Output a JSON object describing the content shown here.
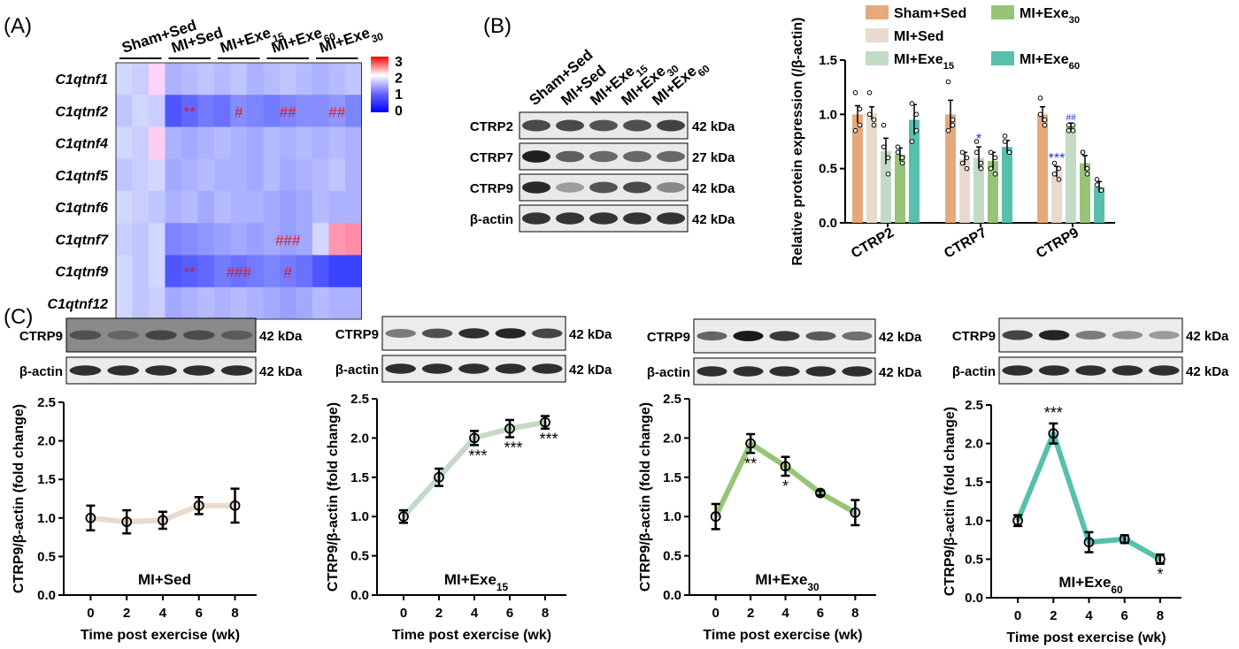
{
  "panels": {
    "A": "(A)",
    "B": "(B)",
    "C": "(C)"
  },
  "colors": {
    "sham_sed": "#e6a97a",
    "mi_sed": "#e8dacd",
    "mi_exe15": "#c3dac6",
    "mi_exe30": "#97c477",
    "mi_exe60": "#56c0ad",
    "sig_red": "#e8141b",
    "sig_blue": "#1a35d6"
  },
  "heatmap": {
    "group_labels": [
      {
        "base": "Sham+Sed",
        "sub": ""
      },
      {
        "base": "MI+Sed",
        "sub": ""
      },
      {
        "base": "MI+Exe",
        "sub": "15"
      },
      {
        "base": "MI+Exe",
        "sub": "60"
      },
      {
        "base": "MI+Exe",
        "sub": "30"
      }
    ],
    "row_labels": [
      "C1qtnf1",
      "C1qtnf2",
      "C1qtnf4",
      "C1qtnf5",
      "C1qtnf6",
      "C1qtnf7",
      "C1qtnf9",
      "C1qtnf12"
    ],
    "colorbar_ticks": [
      "3",
      "2",
      "1",
      "0"
    ],
    "annotations": [
      {
        "row": 1,
        "col": 4,
        "text": "**"
      },
      {
        "row": 1,
        "col": 7,
        "text": "#"
      },
      {
        "row": 1,
        "col": 10,
        "text": "##"
      },
      {
        "row": 1,
        "col": 13,
        "text": "##"
      },
      {
        "row": 5,
        "col": 10,
        "text": "###"
      },
      {
        "row": 6,
        "col": 4,
        "text": "**"
      },
      {
        "row": 6,
        "col": 7,
        "text": "###"
      },
      {
        "row": 6,
        "col": 10,
        "text": "#"
      }
    ]
  },
  "blot_b": {
    "lane_labels": [
      {
        "base": "Sham+Sed",
        "sub": ""
      },
      {
        "base": "MI+Sed",
        "sub": ""
      },
      {
        "base": "MI+Exe",
        "sub": "15"
      },
      {
        "base": "MI+Exe",
        "sub": "30"
      },
      {
        "base": "MI+Exe",
        "sub": "60"
      }
    ],
    "rows": [
      {
        "name": "CTRP2",
        "kda": "42 kDa"
      },
      {
        "name": "CTRP7",
        "kda": "27 kDa"
      },
      {
        "name": "CTRP9",
        "kda": "42 kDa"
      },
      {
        "name": "β-actin",
        "kda": "42 kDa"
      }
    ]
  },
  "legend_b": [
    {
      "base": "Sham+Sed",
      "sub": ""
    },
    {
      "base": "MI+Exe",
      "sub": "30"
    },
    {
      "base": "MI+Sed",
      "sub": ""
    },
    {
      "base": "MI+Exe",
      "sub": "15"
    },
    {
      "base": "MI+Exe",
      "sub": "60"
    }
  ],
  "blot_c_labels": {
    "ctrp9": "CTRP9",
    "actin": "β-actin",
    "kda": "42 kDa"
  },
  "chart_data": [
    {
      "type": "heatmap",
      "rows": [
        "C1qtnf1",
        "C1qtnf2",
        "C1qtnf4",
        "C1qtnf5",
        "C1qtnf6",
        "C1qtnf7",
        "C1qtnf9",
        "C1qtnf12"
      ],
      "scale": [
        0,
        3
      ],
      "values": [
        [
          1.0,
          0.95,
          1.05,
          0.8,
          0.85,
          0.9,
          0.85,
          0.9,
          0.8,
          0.85,
          0.9,
          0.85,
          0.8,
          0.85,
          0.9
        ],
        [
          0.9,
          1.0,
          0.95,
          0.3,
          0.4,
          0.5,
          0.45,
          0.6,
          0.55,
          0.5,
          0.55,
          0.6,
          0.6,
          0.65,
          0.55
        ],
        [
          1.0,
          0.95,
          1.1,
          0.8,
          0.75,
          0.8,
          0.85,
          0.8,
          0.75,
          0.85,
          0.8,
          0.85,
          0.8,
          0.85,
          0.8
        ],
        [
          0.9,
          0.95,
          1.0,
          0.75,
          0.8,
          0.85,
          0.8,
          0.8,
          0.75,
          0.85,
          0.75,
          0.8,
          0.85,
          0.9,
          0.8
        ],
        [
          1.0,
          0.95,
          0.9,
          0.8,
          0.85,
          0.75,
          0.85,
          0.8,
          0.8,
          0.75,
          0.7,
          0.75,
          0.85,
          0.8,
          0.8
        ],
        [
          0.95,
          0.9,
          1.0,
          0.55,
          0.6,
          0.65,
          0.7,
          0.75,
          0.7,
          0.75,
          0.7,
          0.75,
          1.0,
          1.6,
          1.7
        ],
        [
          1.0,
          0.9,
          1.0,
          0.3,
          0.35,
          0.4,
          0.5,
          0.45,
          0.5,
          0.55,
          0.5,
          0.45,
          0.3,
          0.2,
          0.2
        ],
        [
          1.0,
          0.9,
          0.95,
          0.75,
          0.8,
          0.85,
          0.8,
          0.85,
          0.8,
          0.75,
          0.7,
          0.75,
          0.85,
          0.8,
          0.8
        ]
      ]
    },
    {
      "type": "bar",
      "categories": [
        "CTRP2",
        "CTRP7",
        "CTRP9"
      ],
      "ylabel": "Relative protein expression (/β-actin)",
      "ylim": [
        0,
        1.5
      ],
      "yticks": [
        "0.0",
        "0.5",
        "1.0",
        "1.5"
      ],
      "series": [
        {
          "name": "Sham+Sed",
          "values": [
            1.0,
            1.0,
            1.0
          ],
          "err": [
            0.08,
            0.13,
            0.07
          ],
          "points": [
            [
              1.2,
              0.9,
              0.85,
              1.05
            ],
            [
              1.3,
              0.9,
              0.85,
              0.95
            ],
            [
              1.15,
              0.9,
              1.0,
              0.95
            ]
          ],
          "sig": [
            "",
            "",
            ""
          ]
        },
        {
          "name": "MI+Sed",
          "values": [
            1.01,
            0.59,
            0.47
          ],
          "err": [
            0.06,
            0.06,
            0.05
          ],
          "points": [
            [
              1.2,
              0.95,
              1.0,
              0.9
            ],
            [
              0.65,
              0.5,
              0.55,
              0.6
            ],
            [
              0.55,
              0.4,
              0.45,
              0.5
            ]
          ],
          "sig": [
            "",
            "",
            "***"
          ]
        },
        {
          "name": "MI+Exe15",
          "values": [
            0.66,
            0.6,
            0.88
          ],
          "err": [
            0.12,
            0.1,
            0.04
          ],
          "points": [
            [
              0.9,
              0.45,
              0.7,
              0.6
            ],
            [
              0.75,
              0.5,
              0.65,
              0.55
            ],
            [
              0.9,
              0.85,
              0.85,
              0.9
            ]
          ],
          "sig": [
            "",
            "*",
            "##"
          ]
        },
        {
          "name": "MI+Exe30",
          "values": [
            0.63,
            0.57,
            0.55
          ],
          "err": [
            0.06,
            0.08,
            0.07
          ],
          "points": [
            [
              0.7,
              0.55,
              0.65,
              0.6
            ],
            [
              0.65,
              0.45,
              0.5,
              0.6
            ],
            [
              0.65,
              0.45,
              0.65,
              0.5
            ]
          ],
          "sig": [
            "",
            "",
            ""
          ]
        },
        {
          "name": "MI+Exe60",
          "values": [
            0.95,
            0.7,
            0.33
          ],
          "err": [
            0.14,
            0.06,
            0.05
          ],
          "points": [
            [
              1.1,
              0.85,
              0.75,
              1.0
            ],
            [
              0.8,
              0.65,
              0.75,
              0.65
            ],
            [
              0.4,
              0.3,
              0.35,
              0.3
            ]
          ],
          "sig": [
            "",
            "",
            ""
          ]
        }
      ]
    },
    {
      "type": "line",
      "title_base": "MI+Sed",
      "title_sub": "",
      "xlabel": "Time post exercise (wk)",
      "ylabel": "CTRP9/β-actin (fold change)",
      "x": [
        0,
        2,
        4,
        6,
        8
      ],
      "xlim": [
        -1,
        9.2
      ],
      "y": [
        1.0,
        0.95,
        0.97,
        1.16,
        1.16
      ],
      "err": [
        0.16,
        0.15,
        0.11,
        0.11,
        0.22
      ],
      "sig": [
        "",
        "",
        "",
        "",
        ""
      ],
      "ylim": [
        0,
        2.5
      ],
      "yticks": [
        "0.0",
        "0.5",
        "1.0",
        "1.5",
        "2.0",
        "2.5"
      ],
      "color": "#e8dacd"
    },
    {
      "type": "line",
      "title_base": "MI+Exe",
      "title_sub": "15",
      "xlabel": "Time post exercise (wk)",
      "ylabel": "CTRP9/β-actin (fold change)",
      "x": [
        0,
        2,
        4,
        6,
        8
      ],
      "xlim": [
        -1,
        9.2
      ],
      "y": [
        1.0,
        1.5,
        2.0,
        2.12,
        2.2
      ],
      "err": [
        0.08,
        0.11,
        0.09,
        0.11,
        0.08
      ],
      "sig": [
        "",
        "",
        "***",
        "***",
        "***"
      ],
      "ylim": [
        0,
        2.5
      ],
      "yticks": [
        "0.0",
        "0.5",
        "1.0",
        "1.5",
        "2.0",
        "2.5"
      ],
      "color": "#c3dac6"
    },
    {
      "type": "line",
      "title_base": "MI+Exe",
      "title_sub": "30",
      "xlabel": "Time post exercise (wk)",
      "ylabel": "CTRP9/β-actin (fold change)",
      "x": [
        0,
        2,
        4,
        6,
        8
      ],
      "xlim": [
        -1,
        9.2
      ],
      "y": [
        1.0,
        1.93,
        1.64,
        1.3,
        1.05
      ],
      "err": [
        0.16,
        0.12,
        0.12,
        0.03,
        0.16
      ],
      "sig": [
        "",
        "**",
        "*",
        "",
        ""
      ],
      "ylim": [
        0,
        2.5
      ],
      "yticks": [
        "0.0",
        "0.5",
        "1.0",
        "1.5",
        "2.0",
        "2.5"
      ],
      "color": "#97c477"
    },
    {
      "type": "line",
      "title_base": "MI+Exe",
      "title_sub": "60",
      "xlabel": "Time post exercise (wk)",
      "ylabel": "CTRP9/β-actin (fold change)",
      "x": [
        0,
        2,
        4,
        6,
        8
      ],
      "xlim": [
        -1,
        9.2
      ],
      "y": [
        1.0,
        2.13,
        0.72,
        0.76,
        0.5
      ],
      "err": [
        0.07,
        0.13,
        0.13,
        0.05,
        0.06
      ],
      "sig": [
        "",
        "***",
        "",
        "",
        "*"
      ],
      "ylim": [
        0,
        2.5
      ],
      "yticks": [
        "0.0",
        "0.5",
        "1.0",
        "1.5",
        "2.0",
        "2.5"
      ],
      "color": "#56c0ad"
    }
  ]
}
